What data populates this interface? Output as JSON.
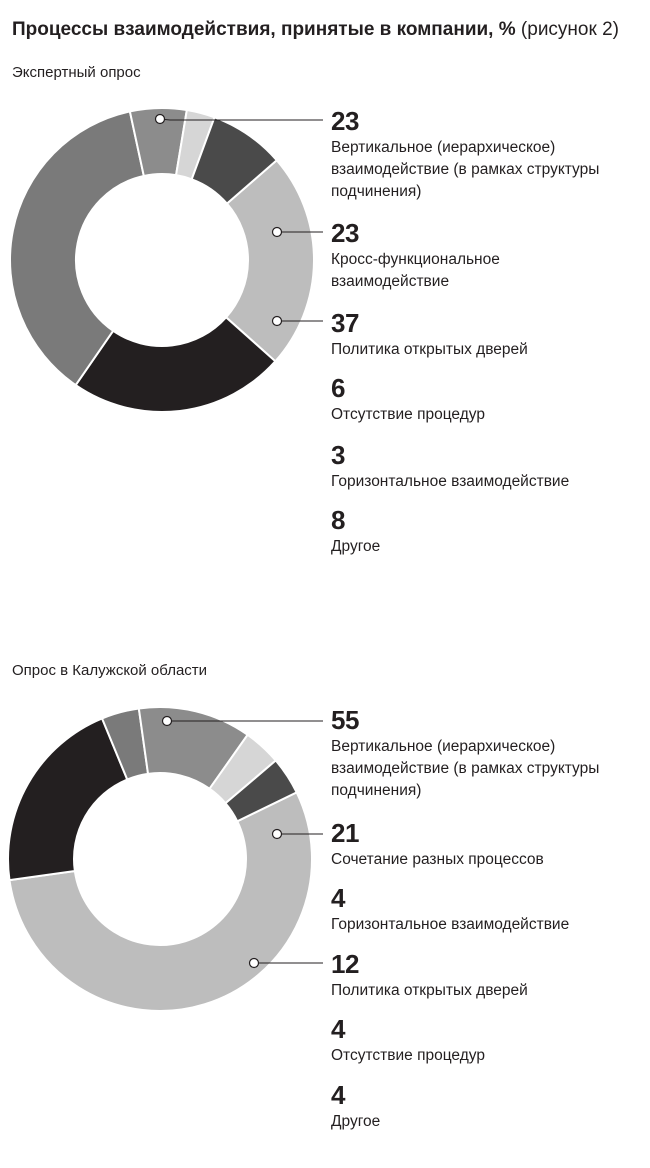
{
  "title": {
    "bold": "Процессы взаимодействия, принятые в компании, %",
    "normal": "(рисунок 2)"
  },
  "chart_data": [
    {
      "type": "pie",
      "title": "Экспертный опрос",
      "slices": [
        {
          "label": "Вертикальное (иерархическое)\nвзаимодействие (в рамках структуры\nподчинения)",
          "value": 23,
          "color": "#bdbdbd"
        },
        {
          "label": "Кросс-функциональное\nвзаимодействие",
          "value": 23,
          "color": "#231f20"
        },
        {
          "label": "Политика открытых дверей",
          "value": 37,
          "color": "#7a7a7a"
        },
        {
          "label": "Отсутствие процедур",
          "value": 6,
          "color": "#8c8c8c"
        },
        {
          "label": "Горизонтальное взаимодействие",
          "value": 3,
          "color": "#d6d6d6"
        },
        {
          "label": "Другое",
          "value": 8,
          "color": "#4a4a4a"
        }
      ]
    },
    {
      "type": "pie",
      "title": "Опрос в Калужской области",
      "slices": [
        {
          "label": "Вертикальное (иерархическое)\nвзаимодействие (в рамках структуры\nподчинения)",
          "value": 55,
          "color": "#bdbdbd"
        },
        {
          "label": "Сочетание разных процессов",
          "value": 21,
          "color": "#231f20"
        },
        {
          "label": "Горизонтальное взаимодействие",
          "value": 4,
          "color": "#7a7a7a"
        },
        {
          "label": "Политика открытых дверей",
          "value": 12,
          "color": "#8c8c8c"
        },
        {
          "label": "Отсутствие процедур",
          "value": 4,
          "color": "#d6d6d6"
        },
        {
          "label": "Другое",
          "value": 4,
          "color": "#4a4a4a"
        }
      ]
    }
  ]
}
